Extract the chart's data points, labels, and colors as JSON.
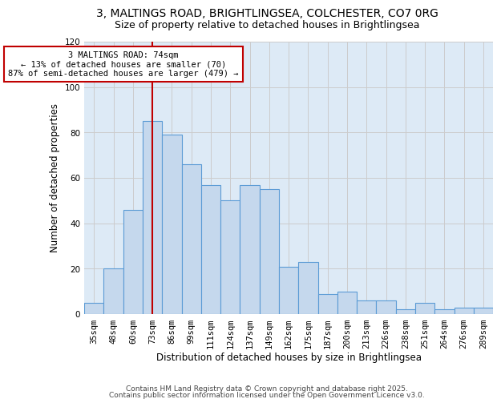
{
  "title_line1": "3, MALTINGS ROAD, BRIGHTLINGSEA, COLCHESTER, CO7 0RG",
  "title_line2": "Size of property relative to detached houses in Brightlingsea",
  "xlabel": "Distribution of detached houses by size in Brightlingsea",
  "ylabel": "Number of detached properties",
  "categories": [
    "35sqm",
    "48sqm",
    "60sqm",
    "73sqm",
    "86sqm",
    "99sqm",
    "111sqm",
    "124sqm",
    "137sqm",
    "149sqm",
    "162sqm",
    "175sqm",
    "187sqm",
    "200sqm",
    "213sqm",
    "226sqm",
    "238sqm",
    "251sqm",
    "264sqm",
    "276sqm",
    "289sqm"
  ],
  "values": [
    5,
    20,
    46,
    85,
    79,
    66,
    57,
    50,
    57,
    55,
    21,
    23,
    9,
    10,
    6,
    6,
    2,
    5,
    2,
    3,
    3
  ],
  "bar_color": "#c5d8ed",
  "bar_edge_color": "#5b9bd5",
  "vline_x_index": 3,
  "vline_color": "#c00000",
  "annotation_text": "3 MALTINGS ROAD: 74sqm\n← 13% of detached houses are smaller (70)\n87% of semi-detached houses are larger (479) →",
  "annotation_box_color": "#ffffff",
  "annotation_box_edge_color": "#c00000",
  "ylim": [
    0,
    120
  ],
  "yticks": [
    0,
    20,
    40,
    60,
    80,
    100,
    120
  ],
  "grid_color": "#cccccc",
  "bg_color": "#ddeaf6",
  "footer_line1": "Contains HM Land Registry data © Crown copyright and database right 2025.",
  "footer_line2": "Contains public sector information licensed under the Open Government Licence v3.0.",
  "title_fontsize": 10,
  "subtitle_fontsize": 9,
  "axis_label_fontsize": 8.5,
  "tick_fontsize": 7.5,
  "annotation_fontsize": 7.5,
  "footer_fontsize": 6.5
}
